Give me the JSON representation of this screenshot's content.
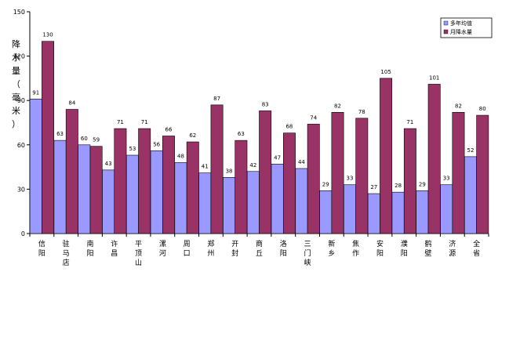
{
  "chart_data": {
    "type": "bar",
    "ylabel": "降水量（毫米）",
    "ylim": [
      0,
      150
    ],
    "yticks": [
      0,
      30,
      60,
      90,
      120,
      150
    ],
    "categories": [
      "信阳",
      "驻马店",
      "南阳",
      "许昌",
      "平顶山",
      "漯河",
      "周口",
      "郑州",
      "开封",
      "商丘",
      "洛阳",
      "三门峡",
      "新乡",
      "焦作",
      "安阳",
      "濮阳",
      "鹤壁",
      "济源",
      "全省"
    ],
    "series": [
      {
        "name": "多年均值",
        "color": "#9999ff",
        "values": [
          91,
          63,
          60,
          43,
          53,
          56,
          48,
          41,
          38,
          42,
          47,
          44,
          29,
          33,
          27,
          28,
          29,
          33,
          52
        ]
      },
      {
        "name": "月降水量",
        "color": "#993366",
        "values": [
          130,
          84,
          59,
          71,
          71,
          66,
          62,
          87,
          63,
          83,
          68,
          74,
          82,
          78,
          105,
          71,
          101,
          82,
          80
        ]
      }
    ],
    "legend_position": "top-right",
    "grid": false
  }
}
